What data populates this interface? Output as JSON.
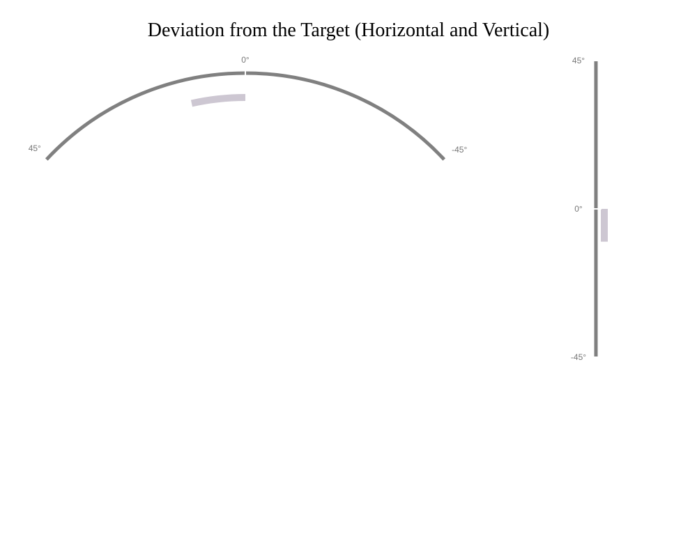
{
  "chart_data": {
    "type": "gauge",
    "title": "Deviation from the Target (Horizontal and Vertical)",
    "horizontal": {
      "range": [
        -45,
        45
      ],
      "tick_labels": {
        "left": "45°",
        "center": "0°",
        "right": "-45°"
      },
      "deviation_from": 0,
      "deviation_to": 12
    },
    "vertical": {
      "range": [
        -45,
        45
      ],
      "tick_labels": {
        "top": "45°",
        "center": "0°",
        "bottom": "-45°"
      },
      "deviation_from": 0,
      "deviation_to": -10
    },
    "colors": {
      "track": "#808080",
      "deviation": "#cdc7d2",
      "center_mark": "#ffffff"
    }
  }
}
